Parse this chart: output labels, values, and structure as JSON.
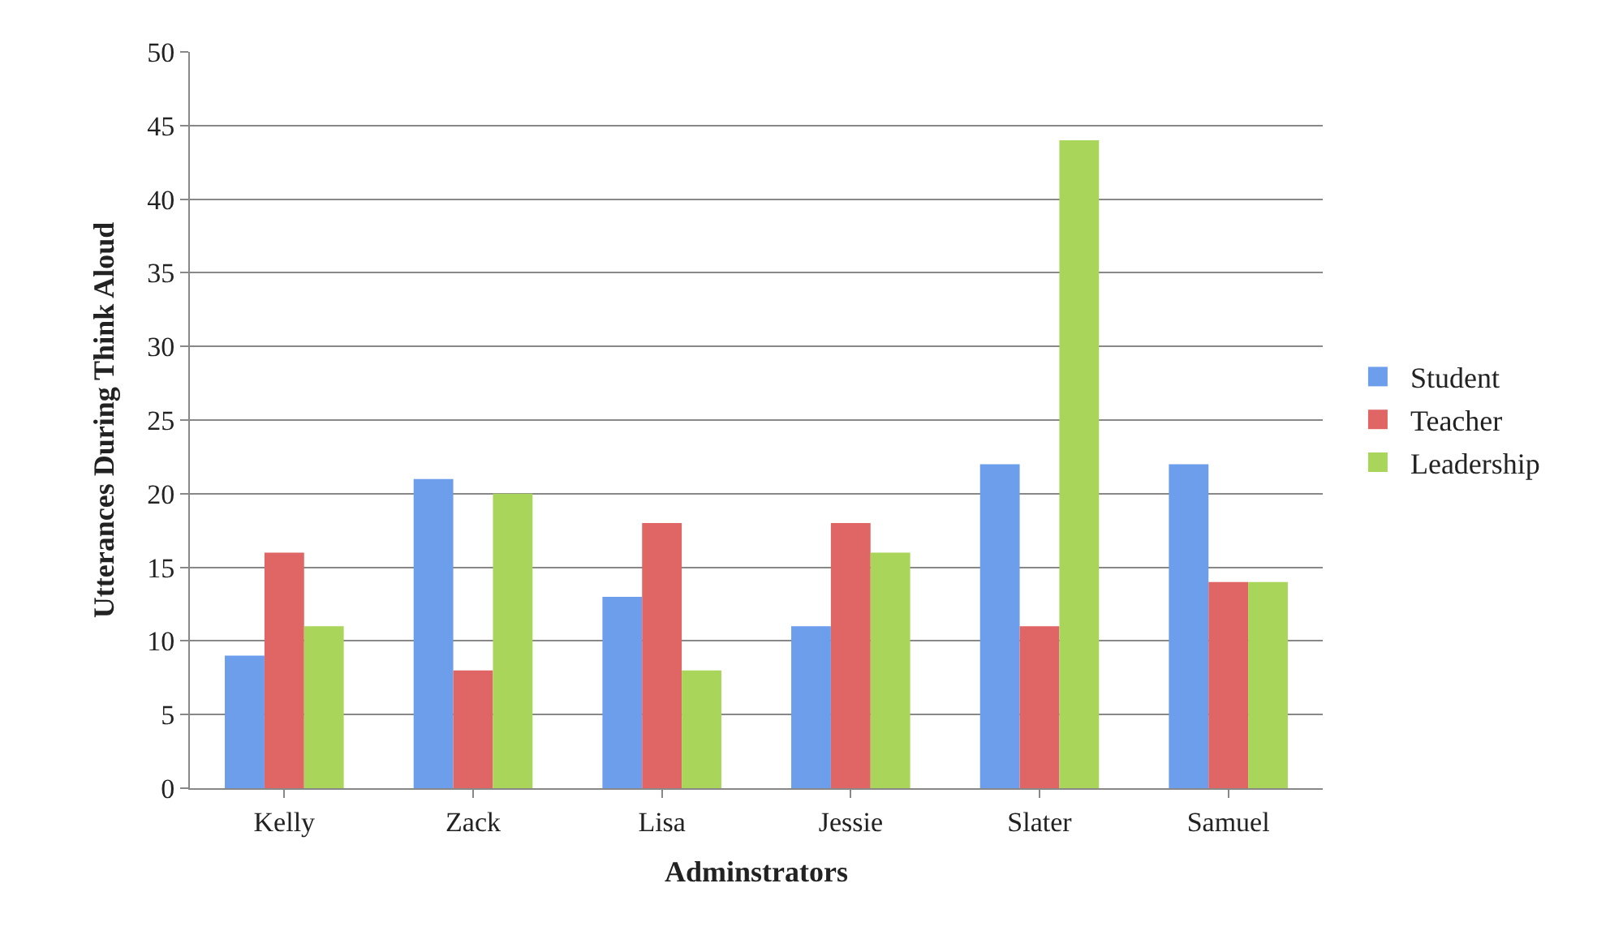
{
  "chart_data": {
    "type": "bar",
    "xlabel": "Adminstrators",
    "ylabel": "Utterances During Think Aloud",
    "categories": [
      "Kelly",
      "Zack",
      "Lisa",
      "Jessie",
      "Slater",
      "Samuel"
    ],
    "series": [
      {
        "name": "Student",
        "color": "#6d9eeb",
        "values": [
          9,
          21,
          13,
          11,
          22,
          22
        ]
      },
      {
        "name": "Teacher",
        "color": "#e06666",
        "values": [
          16,
          8,
          18,
          18,
          11,
          14
        ]
      },
      {
        "name": "Leadership",
        "color": "#a9d65a",
        "values": [
          11,
          20,
          8,
          16,
          44,
          14
        ]
      }
    ],
    "ylim": [
      0,
      50
    ],
    "yticks": [
      0,
      5,
      10,
      15,
      20,
      25,
      30,
      35,
      40,
      45,
      50
    ],
    "grid": "y",
    "legend": "right"
  }
}
